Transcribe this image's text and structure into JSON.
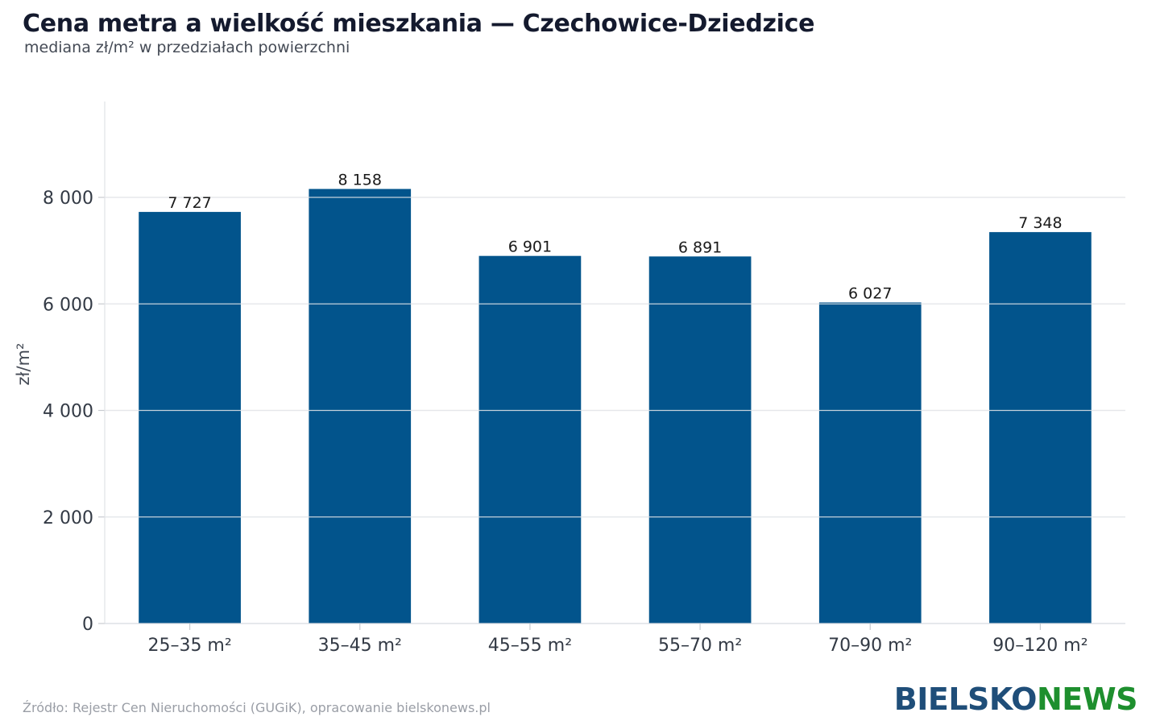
{
  "header": {
    "title": "Cena metra a wielkość mieszkania — Czechowice-Dziedzice",
    "subtitle": "mediana zł/m² w przedziałach powierzchni"
  },
  "footer": {
    "source": "Źródło: Rejestr Cen Nieruchomości (GUGiK), opracowanie bielskonews.pl",
    "logo_part1": "BIELSKO",
    "logo_part2": "NEWS"
  },
  "colors": {
    "bar": "#02548c",
    "grid": "#e3e5e8",
    "logo_blue": "#1f4e79",
    "logo_green": "#1e8f2e"
  },
  "chart_data": {
    "type": "bar",
    "title": "Cena metra a wielkość mieszkania — Czechowice-Dziedzice",
    "subtitle": "mediana zł/m² w przedziałach powierzchni",
    "xlabel": "",
    "ylabel": "zł/m²",
    "categories": [
      "25–35 m²",
      "35–45 m²",
      "45–55 m²",
      "55–70 m²",
      "70–90 m²",
      "90–120 m²"
    ],
    "values": [
      7727,
      8158,
      6901,
      6891,
      6027,
      7348
    ],
    "value_labels": [
      "7 727",
      "8 158",
      "6 901",
      "6 891",
      "6 027",
      "7 348"
    ],
    "ylim": [
      0,
      9800
    ],
    "yticks": [
      0,
      2000,
      4000,
      6000,
      8000
    ],
    "ytick_labels": [
      "0",
      "2 000",
      "4 000",
      "6 000",
      "8 000"
    ],
    "grid": true,
    "legend": "none"
  }
}
